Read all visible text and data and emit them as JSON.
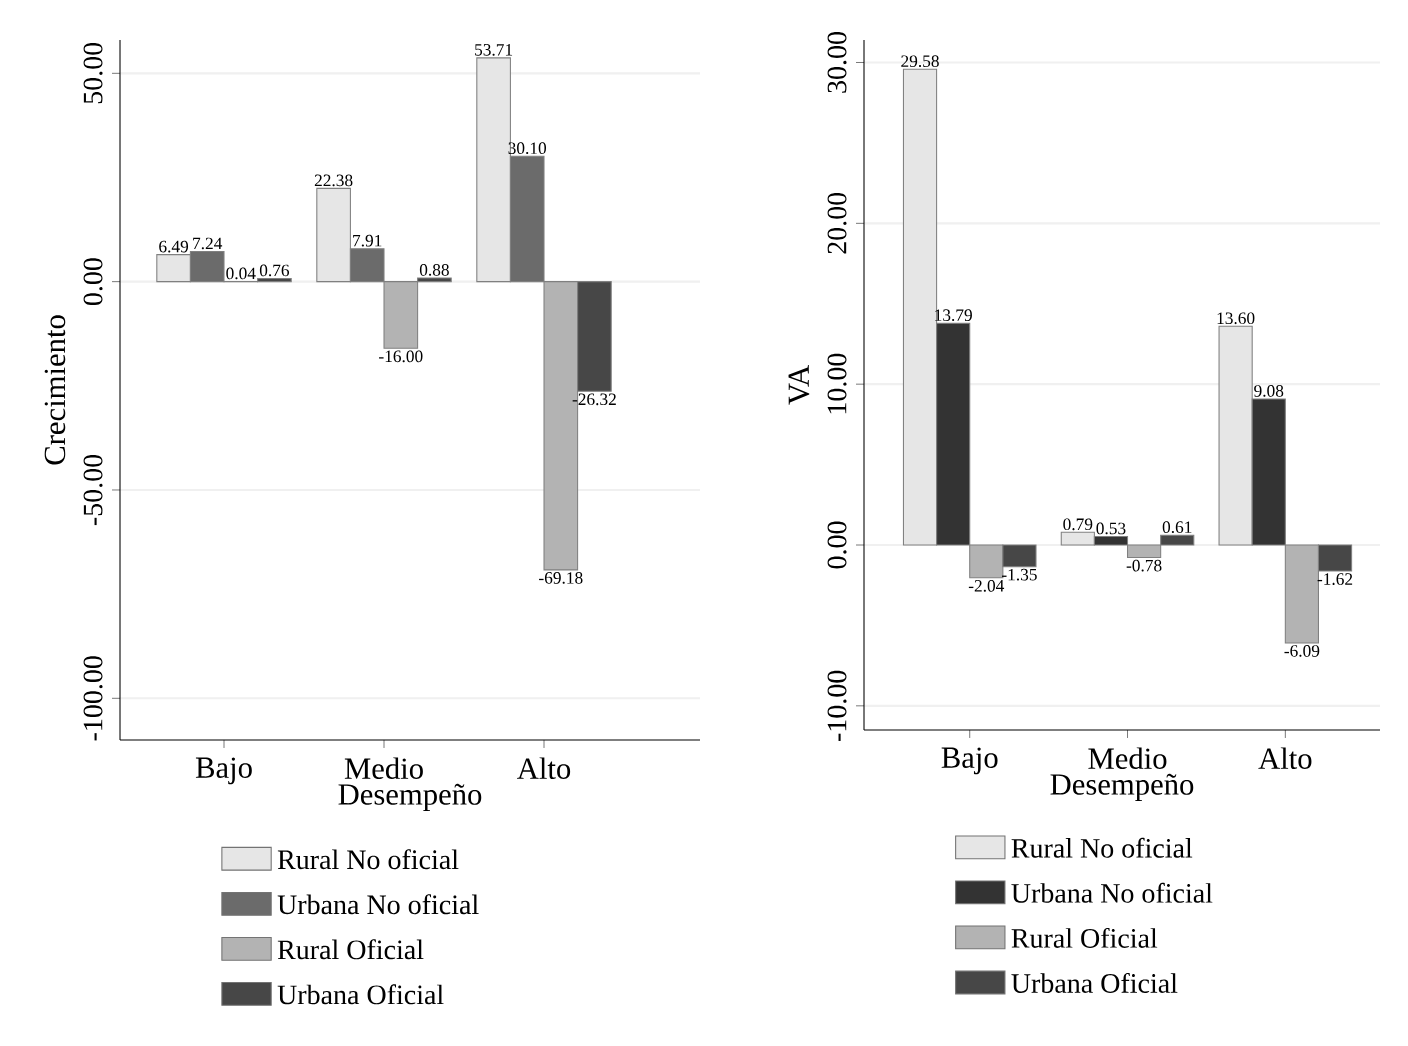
{
  "chart_data": [
    {
      "type": "bar",
      "xlabel": "Desempeño",
      "ylabel": "Crecimiento",
      "categories": [
        "Bajo",
        "Medio",
        "Alto"
      ],
      "series": [
        {
          "name": "Rural No oficial",
          "color": "#e6e6e6",
          "values": [
            6.49,
            22.38,
            53.71
          ],
          "value_labels": [
            "6.49",
            "22.38",
            "53.71"
          ]
        },
        {
          "name": "Urbana No oficial",
          "color": "#6b6b6b",
          "values": [
            7.24,
            7.91,
            30.1
          ],
          "value_labels": [
            "7.24",
            "7.91",
            "30.10"
          ]
        },
        {
          "name": "Rural Oficial",
          "color": "#b3b3b3",
          "values": [
            0.04,
            -16.0,
            -69.18
          ],
          "value_labels": [
            "0.04",
            "-16.00",
            "-69.18"
          ]
        },
        {
          "name": "Urbana Oficial",
          "color": "#474747",
          "values": [
            0.76,
            0.88,
            -26.32
          ],
          "value_labels": [
            "0.76",
            "0.88",
            "-26.32"
          ]
        }
      ],
      "ylim": [
        -110,
        58
      ],
      "yticks": [
        {
          "value": -100,
          "label": "-100.00"
        },
        {
          "value": -50,
          "label": "-50.00"
        },
        {
          "value": 0,
          "label": "0.00"
        },
        {
          "value": 50,
          "label": "50.00"
        }
      ],
      "grid": "y",
      "legend": "bottom"
    },
    {
      "type": "bar",
      "xlabel": "Desempeño",
      "ylabel": "VA",
      "categories": [
        "Bajo",
        "Medio",
        "Alto"
      ],
      "series": [
        {
          "name": "Rural No oficial",
          "color": "#e6e6e6",
          "values": [
            29.58,
            0.79,
            13.6
          ],
          "value_labels": [
            "29.58",
            "0.79",
            "13.60"
          ]
        },
        {
          "name": "Urbana No oficial",
          "color": "#333333",
          "values": [
            13.79,
            0.53,
            9.08
          ],
          "value_labels": [
            "13.79",
            "0.53",
            "9.08"
          ]
        },
        {
          "name": "Rural Oficial",
          "color": "#b3b3b3",
          "values": [
            -2.04,
            -0.78,
            -6.09
          ],
          "value_labels": [
            "-2.04",
            "-0.78",
            "-6.09"
          ]
        },
        {
          "name": "Urbana Oficial",
          "color": "#474747",
          "values": [
            -1.35,
            0.61,
            -1.62
          ],
          "value_labels": [
            "-1.35",
            "0.61",
            "-1.62"
          ]
        }
      ],
      "ylim": [
        -11.5,
        31.4
      ],
      "yticks": [
        {
          "value": -10,
          "label": "-10.00"
        },
        {
          "value": 0,
          "label": "0.00"
        },
        {
          "value": 10,
          "label": "10.00"
        },
        {
          "value": 20,
          "label": "20.00"
        },
        {
          "value": 30,
          "label": "30.00"
        }
      ],
      "grid": "y",
      "legend": "bottom"
    }
  ]
}
